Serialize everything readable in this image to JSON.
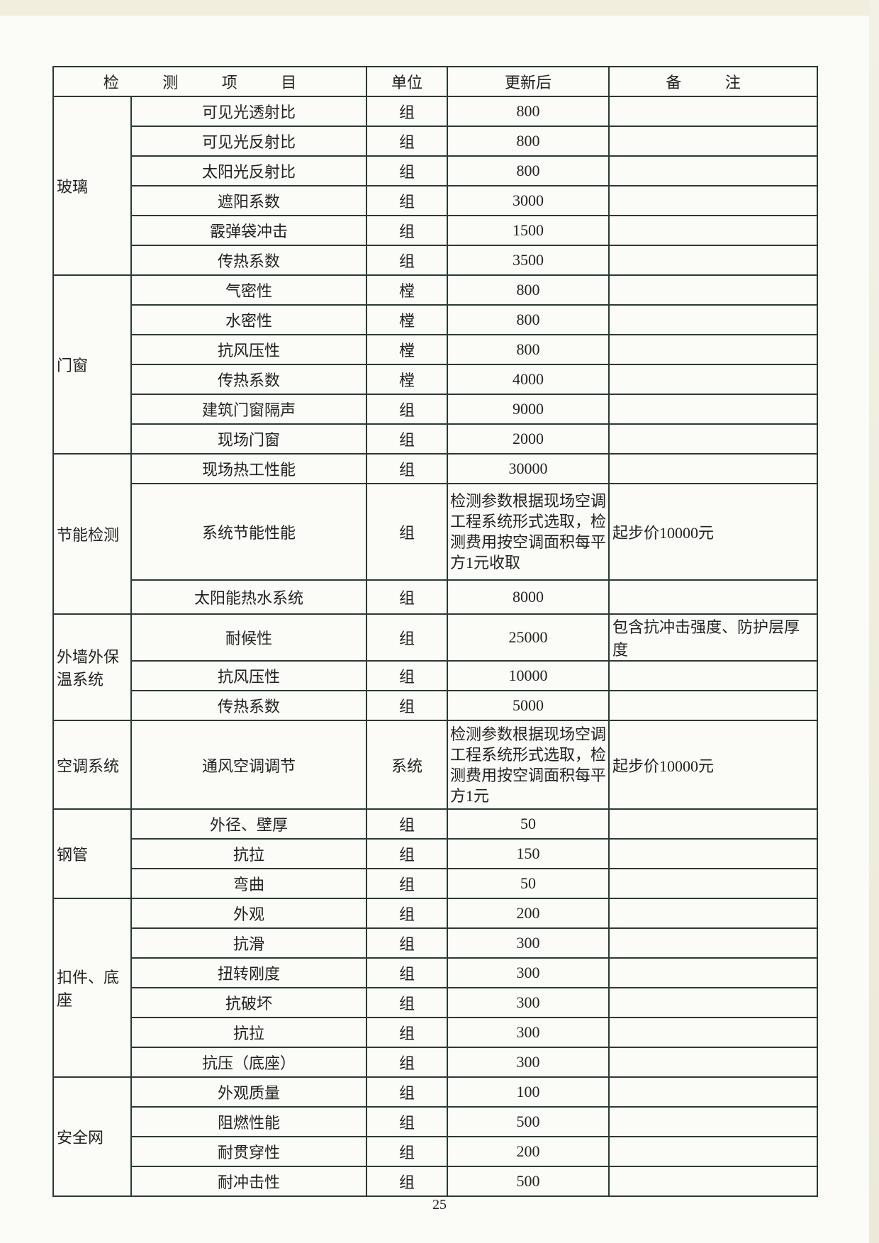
{
  "header": {
    "item": "检 测 项 目",
    "unit": "单位",
    "price": "更新后",
    "note": "备 注"
  },
  "groups": [
    {
      "category": "玻璃",
      "rows": [
        {
          "item": "可见光透射比",
          "unit": "组",
          "price": "800",
          "note": ""
        },
        {
          "item": "可见光反射比",
          "unit": "组",
          "price": "800",
          "note": ""
        },
        {
          "item": "太阳光反射比",
          "unit": "组",
          "price": "800",
          "note": ""
        },
        {
          "item": "遮阳系数",
          "unit": "组",
          "price": "3000",
          "note": ""
        },
        {
          "item": "霰弹袋冲击",
          "unit": "组",
          "price": "1500",
          "note": ""
        },
        {
          "item": "传热系数",
          "unit": "组",
          "price": "3500",
          "note": ""
        }
      ]
    },
    {
      "category": "门窗",
      "rows": [
        {
          "item": "气密性",
          "unit": "樘",
          "price": "800",
          "note": ""
        },
        {
          "item": "水密性",
          "unit": "樘",
          "price": "800",
          "note": ""
        },
        {
          "item": "抗风压性",
          "unit": "樘",
          "price": "800",
          "note": ""
        },
        {
          "item": "传热系数",
          "unit": "樘",
          "price": "4000",
          "note": ""
        },
        {
          "item": "建筑门窗隔声",
          "unit": "组",
          "price": "9000",
          "note": ""
        },
        {
          "item": "现场门窗",
          "unit": "组",
          "price": "2000",
          "note": ""
        }
      ]
    },
    {
      "category": "节能检测",
      "rows": [
        {
          "item": "现场热工性能",
          "unit": "组",
          "price": "30000",
          "note": ""
        },
        {
          "item": "系统节能性能",
          "unit": "组",
          "price": "检测参数根据现场空调工程系统形式选取，检测费用按空调面积每平方1元收取",
          "note": "起步价10000元",
          "tall": 136
        },
        {
          "item": "太阳能热水系统",
          "unit": "组",
          "price": "8000",
          "note": "",
          "tall": 48
        }
      ]
    },
    {
      "category": "外墙外保温系统",
      "rows": [
        {
          "item": "耐候性",
          "unit": "组",
          "price": "25000",
          "note": "包含抗冲击强度、防护层厚度",
          "tall": 66
        },
        {
          "item": "抗风压性",
          "unit": "组",
          "price": "10000",
          "note": ""
        },
        {
          "item": "传热系数",
          "unit": "组",
          "price": "5000",
          "note": ""
        }
      ]
    },
    {
      "category": "空调系统",
      "rows": [
        {
          "item": "通风空调调节",
          "unit": "系统",
          "price": "检测参数根据现场空调工程系统形式选取，检测费用按空调面积每平方1元",
          "note": "起步价10000元",
          "tall": 125
        }
      ]
    },
    {
      "category": "钢管",
      "rows": [
        {
          "item": "外径、壁厚",
          "unit": "组",
          "price": "50",
          "note": ""
        },
        {
          "item": "抗拉",
          "unit": "组",
          "price": "150",
          "note": ""
        },
        {
          "item": "弯曲",
          "unit": "组",
          "price": "50",
          "note": ""
        }
      ]
    },
    {
      "category": "扣件、底座",
      "rows": [
        {
          "item": "外观",
          "unit": "组",
          "price": "200",
          "note": ""
        },
        {
          "item": "抗滑",
          "unit": "组",
          "price": "300",
          "note": ""
        },
        {
          "item": "扭转刚度",
          "unit": "组",
          "price": "300",
          "note": ""
        },
        {
          "item": "抗破坏",
          "unit": "组",
          "price": "300",
          "note": ""
        },
        {
          "item": "抗拉",
          "unit": "组",
          "price": "300",
          "note": ""
        },
        {
          "item": "抗压（底座）",
          "unit": "组",
          "price": "300",
          "note": ""
        }
      ]
    },
    {
      "category": "安全网",
      "rows": [
        {
          "item": "外观质量",
          "unit": "组",
          "price": "100",
          "note": ""
        },
        {
          "item": "阻燃性能",
          "unit": "组",
          "price": "500",
          "note": ""
        },
        {
          "item": "耐贯穿性",
          "unit": "组",
          "price": "200",
          "note": ""
        },
        {
          "item": "耐冲击性",
          "unit": "组",
          "price": "500",
          "note": ""
        }
      ]
    }
  ],
  "page_number": "25"
}
